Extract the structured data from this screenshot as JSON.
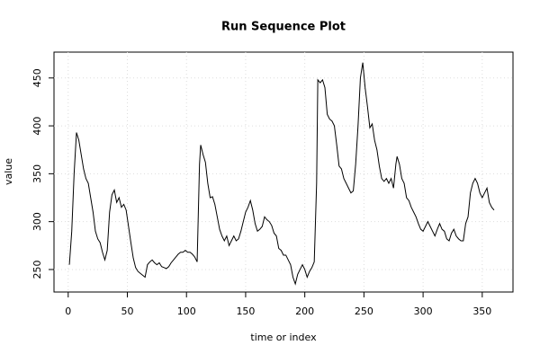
{
  "chart_data": {
    "type": "line",
    "title": "Run Sequence Plot",
    "x_label": "time or index",
    "y_label": "value",
    "color": "#000000",
    "grid": true,
    "xlim": [
      -12,
      376
    ],
    "ylim": [
      226.5,
      477
    ],
    "xticks": [
      0,
      50,
      100,
      150,
      200,
      250,
      300,
      350
    ],
    "yticks": [
      250,
      300,
      350,
      400,
      450
    ],
    "x": [
      1,
      3,
      5,
      7,
      9,
      11,
      13,
      15,
      17,
      19,
      21,
      23,
      25,
      27,
      29,
      31,
      33,
      35,
      37,
      39,
      41,
      43,
      45,
      47,
      49,
      51,
      53,
      55,
      57,
      59,
      61,
      63,
      65,
      67,
      69,
      71,
      73,
      75,
      77,
      79,
      81,
      83,
      85,
      87,
      89,
      91,
      93,
      95,
      97,
      99,
      101,
      103,
      105,
      107,
      109,
      111,
      112,
      114,
      116,
      118,
      120,
      122,
      124,
      126,
      128,
      130,
      132,
      134,
      136,
      138,
      140,
      142,
      144,
      146,
      148,
      150,
      152,
      154,
      156,
      158,
      160,
      162,
      164,
      166,
      168,
      170,
      172,
      174,
      176,
      178,
      180,
      182,
      184,
      186,
      188,
      190,
      192,
      194,
      196,
      198,
      200,
      202,
      204,
      206,
      208,
      210,
      211,
      213,
      215,
      217,
      219,
      221,
      223,
      225,
      227,
      229,
      231,
      233,
      235,
      237,
      239,
      241,
      243,
      245,
      247,
      249,
      251,
      253,
      255,
      257,
      259,
      261,
      263,
      265,
      267,
      269,
      271,
      273,
      275,
      277,
      278,
      280,
      282,
      284,
      286,
      288,
      290,
      292,
      294,
      296,
      298,
      300,
      302,
      304,
      306,
      308,
      310,
      312,
      314,
      316,
      318,
      320,
      322,
      324,
      326,
      328,
      330,
      332,
      334,
      336,
      338,
      340,
      342,
      344,
      346,
      348,
      350,
      352,
      354,
      356,
      358,
      360
    ],
    "values": [
      255,
      290,
      350,
      393,
      385,
      370,
      355,
      345,
      340,
      325,
      310,
      290,
      282,
      278,
      268,
      260,
      270,
      310,
      328,
      333,
      320,
      325,
      315,
      318,
      312,
      295,
      278,
      262,
      252,
      248,
      246,
      244,
      242,
      255,
      258,
      260,
      257,
      255,
      257,
      253,
      252,
      251,
      253,
      257,
      260,
      263,
      266,
      268,
      268,
      270,
      268,
      268,
      266,
      263,
      258,
      360,
      380,
      370,
      362,
      340,
      325,
      326,
      318,
      305,
      292,
      285,
      280,
      285,
      275,
      280,
      285,
      280,
      282,
      290,
      300,
      310,
      315,
      322,
      312,
      298,
      290,
      292,
      295,
      305,
      302,
      300,
      296,
      288,
      285,
      272,
      270,
      265,
      265,
      260,
      255,
      242,
      235,
      245,
      250,
      255,
      250,
      242,
      248,
      252,
      258,
      340,
      448,
      445,
      448,
      440,
      412,
      407,
      405,
      400,
      380,
      358,
      355,
      345,
      340,
      335,
      330,
      332,
      360,
      400,
      450,
      466,
      440,
      420,
      398,
      402,
      385,
      375,
      358,
      345,
      342,
      345,
      340,
      345,
      335,
      360,
      368,
      360,
      345,
      340,
      325,
      322,
      315,
      310,
      305,
      298,
      292,
      290,
      295,
      300,
      295,
      290,
      285,
      292,
      298,
      292,
      290,
      282,
      280,
      288,
      292,
      285,
      282,
      280,
      280,
      298,
      305,
      330,
      340,
      345,
      340,
      330,
      325,
      330,
      335,
      320,
      315,
      312
    ]
  }
}
